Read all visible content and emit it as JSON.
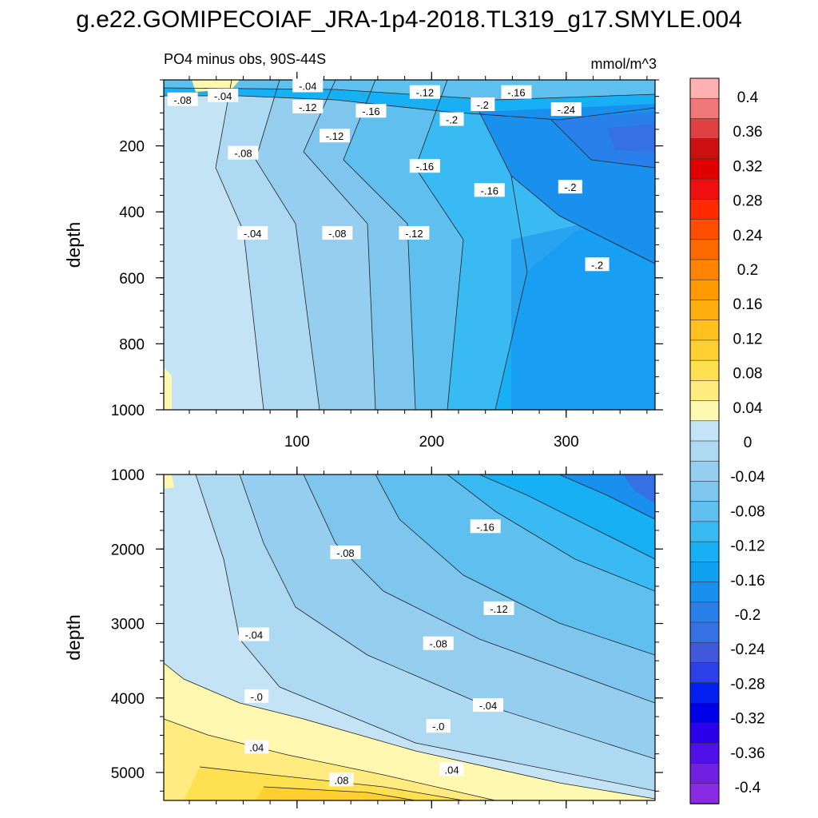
{
  "title": "g.e22.GOMIPECOIAF_JRA-1p4-2018.TL319_g17.SMYLE.004",
  "subtitle": "PO4 minus obs, 90S-44S",
  "units": "mmol/m^3",
  "chart_data": [
    {
      "type": "heatmap",
      "panel": "upper",
      "ylabel": "depth",
      "xlabel": "",
      "xlim": [
        1,
        366
      ],
      "ylim": [
        1000,
        0
      ],
      "x_ticks": [
        "100",
        "200",
        "300"
      ],
      "y_ticks": [
        "200",
        "400",
        "600",
        "800",
        "1000"
      ],
      "contour_labels": [
        {
          "text": "-.08",
          "x": 15,
          "y": 60
        },
        {
          "text": "-.04",
          "x": 45,
          "y": 48
        },
        {
          "text": "-.04",
          "x": 108,
          "y": 18
        },
        {
          "text": "-.12",
          "x": 108,
          "y": 82
        },
        {
          "text": "-.12",
          "x": 128,
          "y": 170
        },
        {
          "text": "-.16",
          "x": 155,
          "y": 95
        },
        {
          "text": "-.12",
          "x": 195,
          "y": 38
        },
        {
          "text": "-.16",
          "x": 263,
          "y": 38
        },
        {
          "text": "-.2",
          "x": 238,
          "y": 75
        },
        {
          "text": "-.2",
          "x": 215,
          "y": 120
        },
        {
          "text": "-.24",
          "x": 300,
          "y": 90
        },
        {
          "text": "-.08",
          "x": 60,
          "y": 222
        },
        {
          "text": "-.16",
          "x": 195,
          "y": 262
        },
        {
          "text": "-.16",
          "x": 243,
          "y": 335
        },
        {
          "text": "-.2",
          "x": 303,
          "y": 325
        },
        {
          "text": "-.04",
          "x": 67,
          "y": 465
        },
        {
          "text": "-.08",
          "x": 130,
          "y": 465
        },
        {
          "text": "-.12",
          "x": 187,
          "y": 465
        },
        {
          "text": "-.2",
          "x": 323,
          "y": 560
        }
      ]
    },
    {
      "type": "heatmap",
      "panel": "lower",
      "ylabel": "depth",
      "xlabel": "",
      "xlim": [
        1,
        366
      ],
      "ylim": [
        5375,
        1000
      ],
      "y_ticks": [
        "1000",
        "2000",
        "3000",
        "4000",
        "5000"
      ],
      "contour_labels": [
        {
          "text": "-.16",
          "x": 240,
          "y": 1700
        },
        {
          "text": "-.08",
          "x": 136,
          "y": 2050
        },
        {
          "text": "-.12",
          "x": 250,
          "y": 2800
        },
        {
          "text": "-.04",
          "x": 68,
          "y": 3150
        },
        {
          "text": "-.08",
          "x": 205,
          "y": 3270
        },
        {
          "text": "-.0",
          "x": 70,
          "y": 3980
        },
        {
          "text": "-.04",
          "x": 242,
          "y": 4100
        },
        {
          "text": "-.0",
          "x": 205,
          "y": 4380
        },
        {
          "text": ".04",
          "x": 70,
          "y": 4660
        },
        {
          "text": ".04",
          "x": 215,
          "y": 4960
        },
        {
          "text": ".08",
          "x": 133,
          "y": 5100
        }
      ]
    }
  ],
  "colorbar": {
    "colors": [
      "#FFB0B0",
      "#F07878",
      "#E04040",
      "#CC1010",
      "#E00000",
      "#EE1010",
      "#FF2A00",
      "#FF4E00",
      "#FF6A00",
      "#FF8400",
      "#FF9A00",
      "#FFAE10",
      "#FFC020",
      "#FFD030",
      "#FFE050",
      "#FFEB80",
      "#FFF8B0",
      "#C4E3F5",
      "#ADDAF2",
      "#95CEEE",
      "#7EC6EE",
      "#5FC0F0",
      "#3ABAF2",
      "#18B0F5",
      "#10A0F0",
      "#1A90EE",
      "#2A80EA",
      "#3570E4",
      "#4058DA",
      "#2A40E8",
      "#0020F0",
      "#0000E6",
      "#2A00E8",
      "#5010E8",
      "#7020E0",
      "#8A2AE2"
    ],
    "labels": [
      "0.4",
      "0.36",
      "0.32",
      "0.28",
      "0.24",
      "0.2",
      "0.16",
      "0.12",
      "0.08",
      "0.04",
      "0",
      "-0.04",
      "-0.08",
      "-0.12",
      "-0.16",
      "-0.2",
      "-0.24",
      "-0.28",
      "-0.32",
      "-0.36",
      "-0.4"
    ]
  }
}
